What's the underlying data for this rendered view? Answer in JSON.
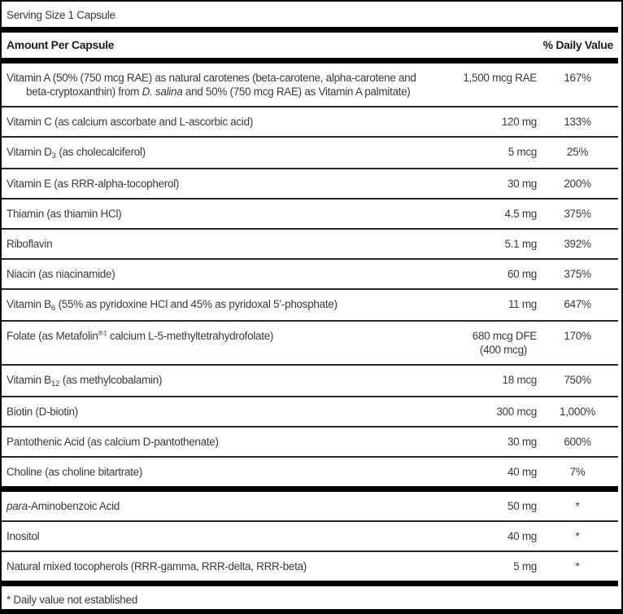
{
  "label": {
    "serving_size": "Serving Size 1 Capsule",
    "header": {
      "amount_col": "Amount Per Capsule",
      "dv_col": "% Daily Value"
    },
    "footnote": "* Daily value not established",
    "colors": {
      "bar": "#000000",
      "text": "#3a3a3a",
      "divider": "#262626"
    },
    "sections": [
      {
        "rows": [
          {
            "name": [
              {
                "t": "Vitamin A (50% (750 mcg RAE) as natural carotenes (beta-carotene, alpha-carotene and"
              },
              {
                "br": true
              },
              {
                "t": "beta-cryptoxanthin) from "
              },
              {
                "t": "D. salina",
                "i": true
              },
              {
                "t": " and 50% (750 mcg RAE) as Vitamin A palmitate)"
              }
            ],
            "amount": [
              "1,500 mcg RAE"
            ],
            "dv": "167%"
          },
          {
            "name": [
              {
                "t": "Vitamin C (as calcium ascorbate and L-ascorbic acid)"
              }
            ],
            "amount": [
              "120 mg"
            ],
            "dv": "133%"
          },
          {
            "name": [
              {
                "t": "Vitamin D"
              },
              {
                "t": "3",
                "sub": true
              },
              {
                "t": " (as cholecalciferol)"
              }
            ],
            "amount": [
              "5 mcg"
            ],
            "dv": "25%"
          },
          {
            "name": [
              {
                "t": "Vitamin E (as RRR-alpha-tocopherol)"
              }
            ],
            "amount": [
              "30 mg"
            ],
            "dv": "200%"
          },
          {
            "name": [
              {
                "t": "Thiamin (as thiamin HCl)"
              }
            ],
            "amount": [
              "4.5 mg"
            ],
            "dv": "375%"
          },
          {
            "name": [
              {
                "t": "Riboflavin"
              }
            ],
            "amount": [
              "5.1 mg"
            ],
            "dv": "392%"
          },
          {
            "name": [
              {
                "t": "Niacin (as niacinamide)"
              }
            ],
            "amount": [
              "60 mg"
            ],
            "dv": "375%"
          },
          {
            "name": [
              {
                "t": "Vitamin B"
              },
              {
                "t": "6",
                "sub": true
              },
              {
                "t": " (55% as pyridoxine HCl and 45% as pyridoxal 5’-phosphate)"
              }
            ],
            "amount": [
              "11 mg"
            ],
            "dv": "647%"
          },
          {
            "name": [
              {
                "t": "Folate (as Metafolin"
              },
              {
                "t": "®‡",
                "sup": true
              },
              {
                "t": " calcium L-5-methyltetrahydrofolate)"
              }
            ],
            "amount": [
              "680 mcg DFE",
              "(400 mcg)"
            ],
            "dv": "170%"
          },
          {
            "name": [
              {
                "t": "Vitamin B"
              },
              {
                "t": "12",
                "sub": true
              },
              {
                "t": " (as methylcobalamin)"
              }
            ],
            "amount": [
              "18 mcg"
            ],
            "dv": "750%"
          },
          {
            "name": [
              {
                "t": "Biotin (D-biotin)"
              }
            ],
            "amount": [
              "300 mcg"
            ],
            "dv": "1,000%"
          },
          {
            "name": [
              {
                "t": "Pantothenic Acid (as calcium D-pantothenate)"
              }
            ],
            "amount": [
              "30 mg"
            ],
            "dv": "600%"
          },
          {
            "name": [
              {
                "t": "Choline (as choline bitartrate)"
              }
            ],
            "amount": [
              "40 mg"
            ],
            "dv": "7%"
          }
        ]
      },
      {
        "rows": [
          {
            "name": [
              {
                "t": "para",
                "i": true
              },
              {
                "t": "-Aminobenzoic Acid"
              }
            ],
            "amount": [
              "50 mg"
            ],
            "dv": "*"
          },
          {
            "name": [
              {
                "t": "Inositol"
              }
            ],
            "amount": [
              "40 mg"
            ],
            "dv": "*"
          },
          {
            "name": [
              {
                "t": "Natural mixed tocopherols (RRR-gamma, RRR-delta, RRR-beta)"
              }
            ],
            "amount": [
              "5 mg"
            ],
            "dv": "*"
          }
        ]
      }
    ]
  }
}
